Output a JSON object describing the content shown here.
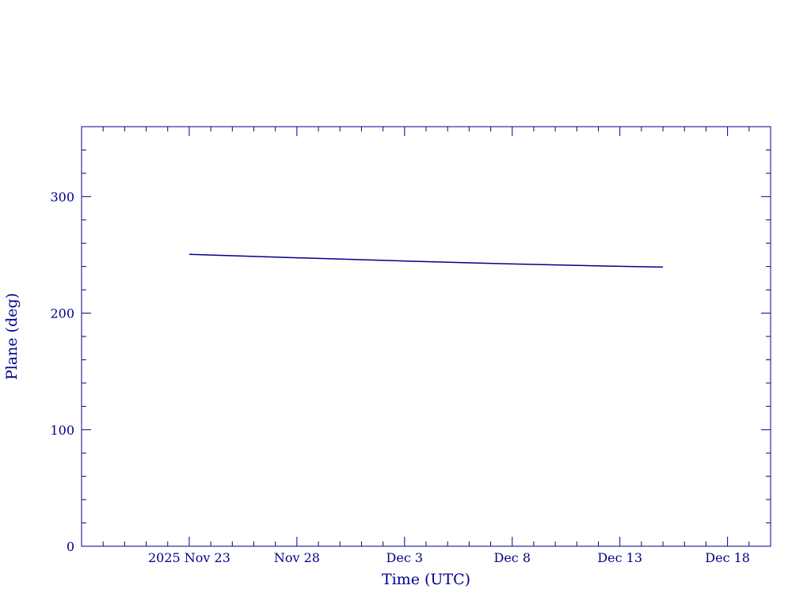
{
  "chart_data": {
    "type": "line",
    "xlabel": "Time (UTC)",
    "ylabel": "Plane (deg)",
    "colors": {
      "axes": "#00008b",
      "line": "#00008b"
    },
    "x_range": [
      "2025-11-18",
      "2025-12-20"
    ],
    "ylim": [
      0,
      360
    ],
    "x_ticks": [
      {
        "date": "2025-11-23",
        "label": "2025 Nov 23"
      },
      {
        "date": "2025-11-28",
        "label": "Nov 28"
      },
      {
        "date": "2025-12-03",
        "label": "Dec  3"
      },
      {
        "date": "2025-12-08",
        "label": "Dec  8"
      },
      {
        "date": "2025-12-13",
        "label": "Dec 13"
      },
      {
        "date": "2025-12-18",
        "label": "Dec 18"
      }
    ],
    "y_ticks": [
      {
        "value": 0,
        "label": "0"
      },
      {
        "value": 100,
        "label": "100"
      },
      {
        "value": 200,
        "label": "200"
      },
      {
        "value": 300,
        "label": "300"
      }
    ],
    "grid": false,
    "series": [
      {
        "x": [
          "2025-11-23",
          "2025-11-28",
          "2025-12-03",
          "2025-12-08",
          "2025-12-13",
          "2025-12-15"
        ],
        "y": [
          250.5,
          247.5,
          244.7,
          242.2,
          240.2,
          239.5
        ]
      }
    ]
  }
}
